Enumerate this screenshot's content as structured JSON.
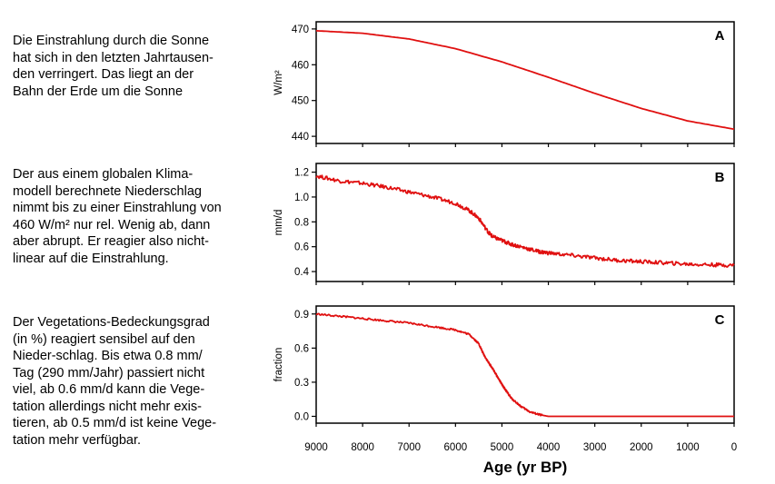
{
  "texts": {
    "a": "Die Einstrahlung durch die Sonne\nhat sich in den letzten Jahrtausen-\nden verringert. Das liegt an der\nBahn der Erde um die Sonne",
    "b": "Der aus einem globalen Klima-\nmodell berechnete Niederschlag\nnimmt bis zu einer Einstrahlung von\n460 W/m² nur rel. Wenig ab, dann\naber abrupt. Er reagier also nicht-\nlinear auf die Einstrahlung.",
    "c": "Der Vegetations-Bedeckungsgrad\n(in %) reagiert sensibel auf den\nNieder-schlag. Bis etwa 0.8 mm/\nTag (290 mm/Jahr) passiert nicht\nviel, ab 0.6 mm/d kann die Vege-\ntation allerdings nicht mehr exis-\ntieren, ab 0.5 mm/d ist keine Vege-\ntation mehr verfügbar."
  },
  "colors": {
    "line": "#e01010",
    "axis": "#000000"
  },
  "chart_data": [
    {
      "type": "line",
      "panel_label": "A",
      "ylabel": "W/m²",
      "ylim": [
        438,
        472
      ],
      "yticks": [
        "440",
        "450",
        "460",
        "470"
      ],
      "xlim": [
        9000,
        0
      ],
      "series": [
        {
          "x": [
            9000,
            8000,
            7000,
            6000,
            5000,
            4000,
            3000,
            2000,
            1000,
            0
          ],
          "values": [
            469.5,
            468.8,
            467.2,
            464.5,
            460.8,
            456.5,
            452.0,
            447.8,
            444.3,
            442.0
          ]
        }
      ]
    },
    {
      "type": "line",
      "panel_label": "B",
      "ylabel": "mm/d",
      "ylim": [
        0.32,
        1.27
      ],
      "yticks": [
        "0.4",
        "0.6",
        "0.8",
        "1.0",
        "1.2"
      ],
      "xlim": [
        9000,
        0
      ],
      "series": [
        {
          "x": [
            9000,
            8500,
            8000,
            7500,
            7000,
            6500,
            6000,
            5700,
            5500,
            5300,
            5200,
            5000,
            4800,
            4500,
            4200,
            4000,
            3500,
            3000,
            2500,
            2000,
            1500,
            1000,
            500,
            0
          ],
          "values": [
            1.17,
            1.13,
            1.11,
            1.08,
            1.04,
            1.0,
            0.95,
            0.89,
            0.83,
            0.72,
            0.68,
            0.65,
            0.62,
            0.59,
            0.56,
            0.55,
            0.53,
            0.51,
            0.49,
            0.48,
            0.47,
            0.46,
            0.455,
            0.45
          ]
        }
      ]
    },
    {
      "type": "line",
      "panel_label": "C",
      "ylabel": "fraction",
      "ylim": [
        -0.06,
        0.97
      ],
      "yticks": [
        "0.0",
        "0.3",
        "0.6",
        "0.9"
      ],
      "xlim": [
        9000,
        0
      ],
      "xticks": [
        "9000",
        "8000",
        "7000",
        "6000",
        "5000",
        "4000",
        "3000",
        "2000",
        "1000",
        "0"
      ],
      "xlabel": "Age (yr BP)",
      "series": [
        {
          "x": [
            9000,
            8500,
            8000,
            7500,
            7000,
            6500,
            6000,
            5700,
            5500,
            5400,
            5300,
            5200,
            5100,
            5000,
            4900,
            4800,
            4600,
            4400,
            4200,
            4000,
            3000,
            2000,
            1000,
            0
          ],
          "values": [
            0.9,
            0.88,
            0.86,
            0.84,
            0.82,
            0.79,
            0.76,
            0.72,
            0.64,
            0.55,
            0.48,
            0.42,
            0.35,
            0.28,
            0.22,
            0.16,
            0.09,
            0.04,
            0.015,
            0.0,
            0.0,
            0.0,
            0.0,
            0.0
          ]
        }
      ]
    }
  ]
}
